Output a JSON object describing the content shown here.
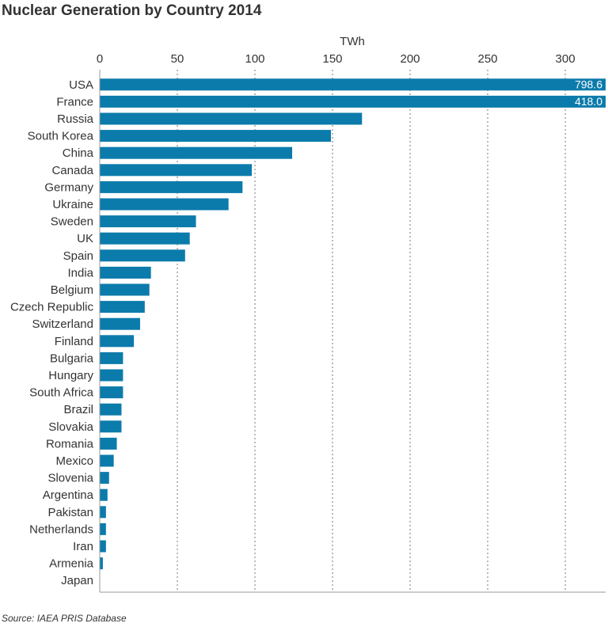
{
  "chart_data": {
    "type": "hbar",
    "title": "Nuclear Generation by Country 2014",
    "x_label": "TWh",
    "source": "Source: IAEA PRIS Database",
    "categories": [
      "USA",
      "France",
      "Russia",
      "South Korea",
      "China",
      "Canada",
      "Germany",
      "Ukraine",
      "Sweden",
      "UK",
      "Spain",
      "India",
      "Belgium",
      "Czech Republic",
      "Switzerland",
      "Finland",
      "Bulgaria",
      "Hungary",
      "South Africa",
      "Brazil",
      "Slovakia",
      "Romania",
      "Mexico",
      "Slovenia",
      "Argentina",
      "Pakistan",
      "Netherlands",
      "Iran",
      "Armenia",
      "Japan"
    ],
    "values": [
      798.6,
      418.0,
      169,
      149,
      124,
      98,
      92,
      83,
      62,
      58,
      55,
      33,
      32,
      29,
      26,
      22,
      15,
      15,
      15,
      14,
      14,
      11,
      9,
      6,
      5,
      4,
      4,
      4,
      2,
      0
    ],
    "value_labels": [
      "798.6",
      "418.0",
      null,
      null,
      null,
      null,
      null,
      null,
      null,
      null,
      null,
      null,
      null,
      null,
      null,
      null,
      null,
      null,
      null,
      null,
      null,
      null,
      null,
      null,
      null,
      null,
      null,
      null,
      null,
      null
    ],
    "color": "#0b7bab",
    "xlim": [
      0,
      326
    ],
    "xticks": [
      0,
      50,
      100,
      150,
      200,
      250,
      300
    ],
    "grid": true
  }
}
